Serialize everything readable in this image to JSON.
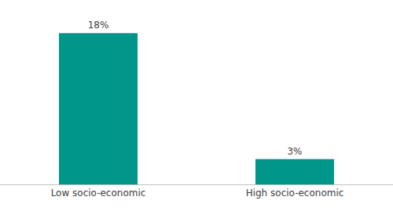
{
  "chart_data": {
    "type": "bar",
    "categories": [
      "Low socio-economic",
      "High socio-economic"
    ],
    "values": [
      18,
      3
    ],
    "value_labels": [
      "18%",
      "3%"
    ],
    "color": "#00968a",
    "data_labels": true,
    "tick_labels": "x",
    "grid": false
  }
}
